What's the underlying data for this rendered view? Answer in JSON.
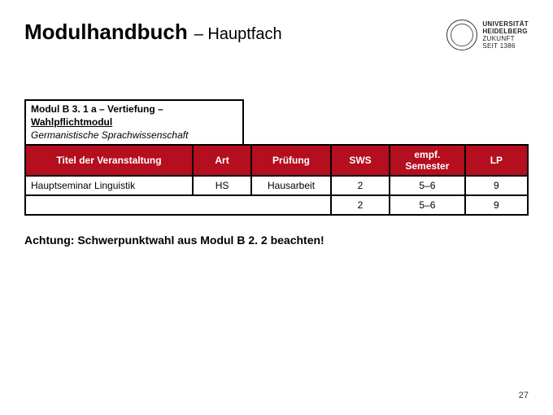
{
  "header": {
    "title_main": "Modulhandbuch",
    "title_sub": "– Hauptfach",
    "logo": {
      "line1": "UNIVERSITÄT",
      "line2": "HEIDELBERG",
      "line3": "ZUKUNFT",
      "line4": "SEIT 1386"
    }
  },
  "module_info": {
    "code_prefix": "Modul B 3. 1 a",
    "code_suffix": " – Vertiefung –",
    "subtype": "Wahlpflichtmodul",
    "field": "Germanistische Sprachwissenschaft"
  },
  "table": {
    "headers": {
      "titel": "Titel der Veranstaltung",
      "art": "Art",
      "pruefung": "Prüfung",
      "sws": "SWS",
      "semester": "empf. Semester",
      "lp": "LP"
    },
    "rows": [
      {
        "titel": "Hauptseminar Linguistik",
        "art": "HS",
        "pruefung": "Hausarbeit",
        "sws": "2",
        "semester": "5–6",
        "lp": "9"
      }
    ],
    "summary": {
      "sws": "2",
      "semester": "5–6",
      "lp": "9"
    },
    "colors": {
      "header_bg": "#b40e1f",
      "header_fg": "#ffffff",
      "border": "#000000"
    }
  },
  "note": "Achtung: Schwerpunktwahl aus Modul B 2. 2 beachten!",
  "page_number": "27"
}
